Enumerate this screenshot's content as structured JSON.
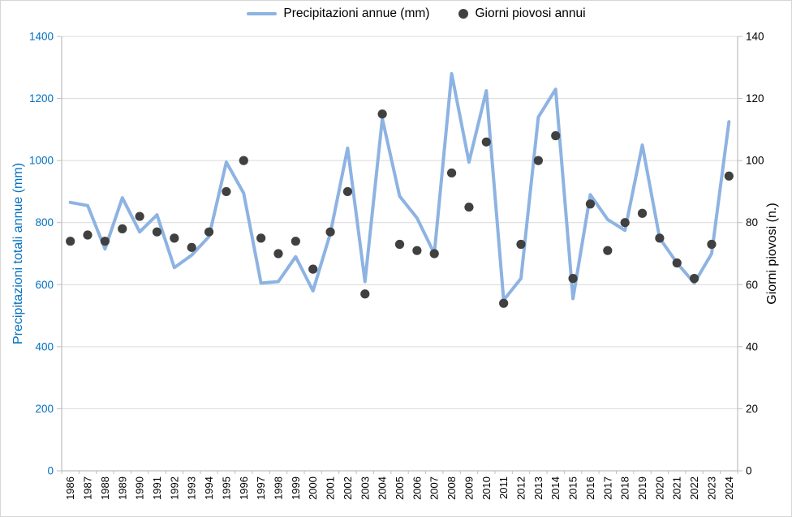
{
  "legend": {
    "line_label": "Precipitazioni annue (mm)",
    "dot_label": "Giorni piovosi annui"
  },
  "chart_data": {
    "type": "line",
    "title": "",
    "grid": true,
    "legend_position": "top",
    "categories": [
      "1986",
      "1987",
      "1988",
      "1989",
      "1990",
      "1991",
      "1992",
      "1993",
      "1994",
      "1995",
      "1996",
      "1997",
      "1998",
      "1999",
      "2000",
      "2001",
      "2002",
      "2003",
      "2004",
      "2005",
      "2006",
      "2007",
      "2008",
      "2009",
      "2010",
      "2011",
      "2012",
      "2013",
      "2014",
      "2015",
      "2016",
      "2017",
      "2018",
      "2019",
      "2020",
      "2021",
      "2022",
      "2023",
      "2024"
    ],
    "series": [
      {
        "name": "Precipitazioni annue (mm)",
        "type": "line",
        "axis": "left",
        "color": "#8DB3E2",
        "values": [
          865,
          855,
          715,
          880,
          770,
          825,
          655,
          695,
          755,
          995,
          895,
          605,
          610,
          690,
          580,
          765,
          1040,
          610,
          1135,
          885,
          815,
          700,
          1280,
          995,
          1225,
          550,
          620,
          1140,
          1230,
          555,
          890,
          810,
          775,
          1050,
          750,
          670,
          605,
          700,
          1125
        ]
      },
      {
        "name": "Giorni piovosi annui",
        "type": "scatter",
        "axis": "right",
        "color": "#404040",
        "values": [
          74,
          76,
          74,
          78,
          82,
          77,
          75,
          72,
          77,
          90,
          100,
          75,
          70,
          74,
          65,
          77,
          90,
          57,
          115,
          73,
          71,
          70,
          96,
          85,
          106,
          54,
          73,
          100,
          108,
          62,
          86,
          71,
          80,
          83,
          75,
          67,
          62,
          73,
          95
        ]
      }
    ],
    "left_axis": {
      "title": "Precipitazioni totali annue (mm)",
      "min": 0,
      "max": 1400,
      "step": 200,
      "color": "#0070C0"
    },
    "right_axis": {
      "title": "Giorni piovosi (n.)",
      "min": 0,
      "max": 140,
      "step": 20,
      "color": "#000000"
    }
  }
}
